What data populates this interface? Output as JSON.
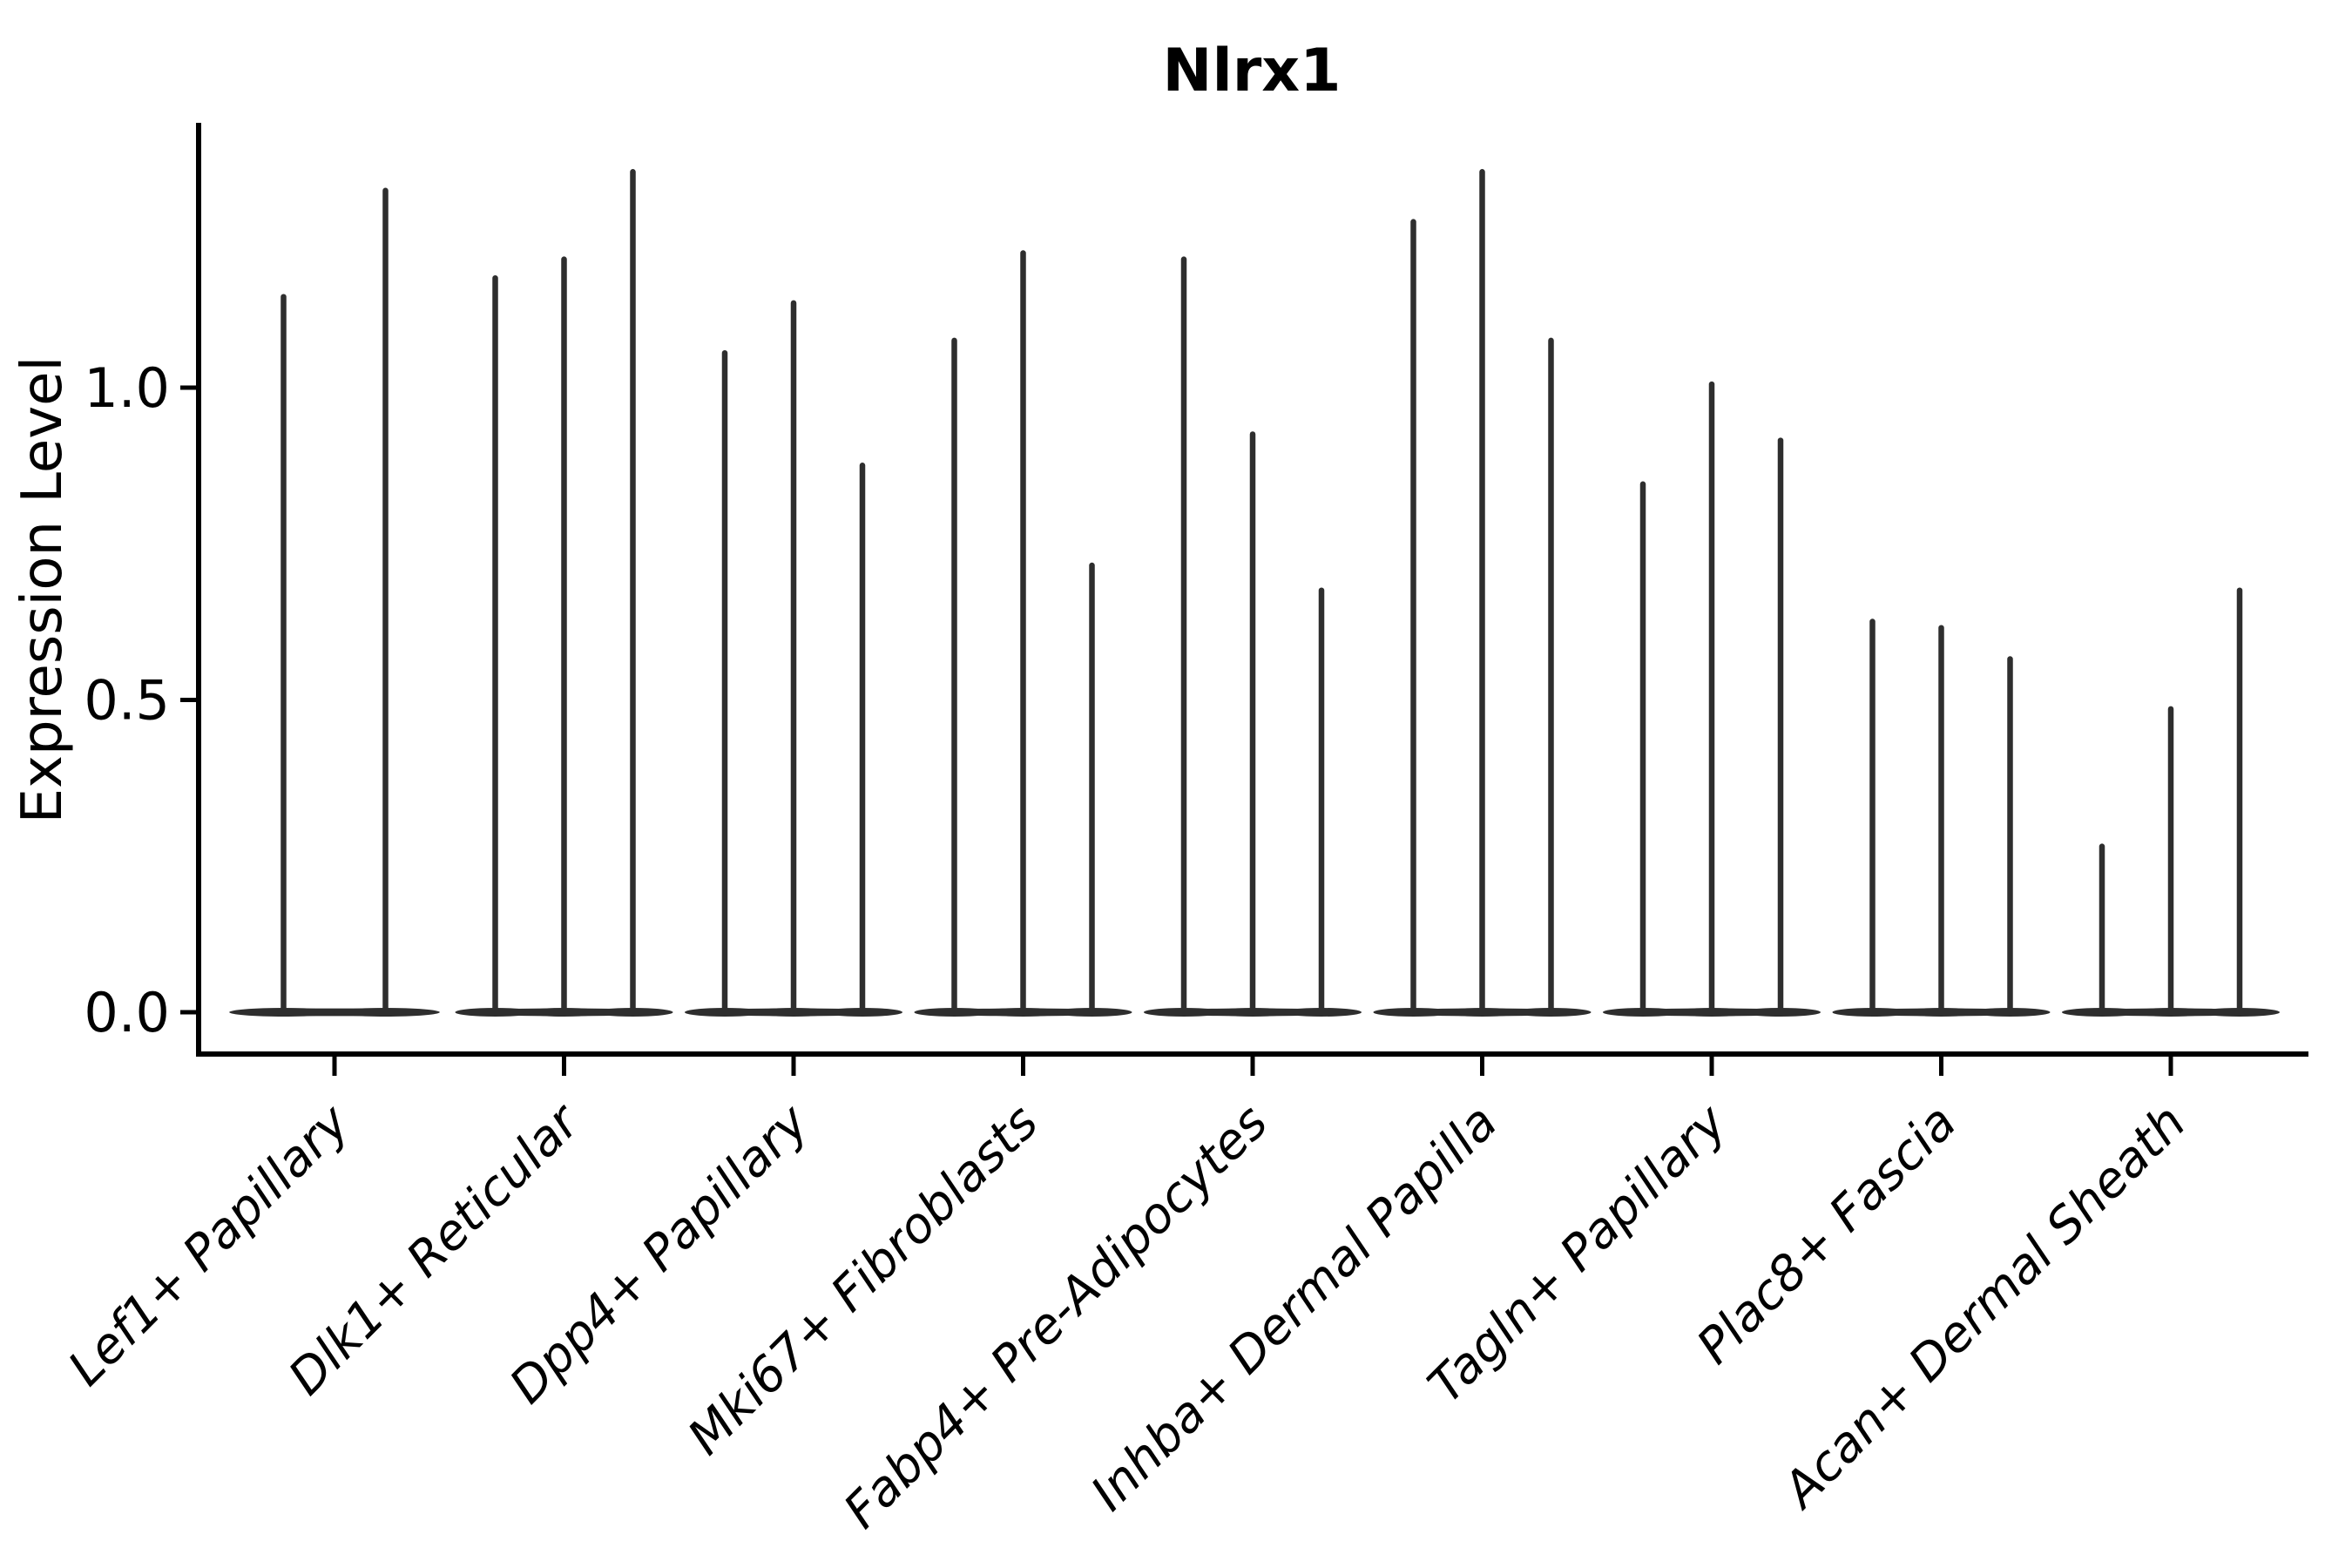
{
  "chart_data": {
    "type": "violin",
    "title": "Nlrx1",
    "ylabel": "Expression Level",
    "xlabel": "",
    "ytick_labels": [
      "0.0",
      "0.5",
      "1.0"
    ],
    "ytick_values": [
      0.0,
      0.5,
      1.0
    ],
    "ylim": [
      -0.07,
      1.42
    ],
    "grid": false,
    "legend": null,
    "violin_color": "#2e2e2e",
    "axis_color": "#000000",
    "background_color": "#ffffff",
    "categories": [
      "Lef1+ Papillary",
      "Dlk1+ Reticular",
      "Dpp4+ Papillary",
      "Mki67+ Fibroblasts",
      "Fabp4+ Pre-Adipocytes",
      "Inhba+ Dermal Papilla",
      "Tagln+ Papillary",
      "Plac8+ Fascia",
      "Acan+ Dermal Sheath"
    ],
    "groups": [
      {
        "category": "Lef1+ Papillary",
        "max_expression": [
          1.15,
          1.32
        ]
      },
      {
        "category": "Dlk1+ Reticular",
        "max_expression": [
          1.18,
          1.21,
          1.35
        ]
      },
      {
        "category": "Dpp4+ Papillary",
        "max_expression": [
          1.06,
          1.14,
          0.88
        ]
      },
      {
        "category": "Mki67+ Fibroblasts",
        "max_expression": [
          1.08,
          1.22,
          0.72
        ]
      },
      {
        "category": "Fabp4+ Pre-Adipocytes",
        "max_expression": [
          1.21,
          0.93,
          0.68
        ]
      },
      {
        "category": "Inhba+ Dermal Papilla",
        "max_expression": [
          1.27,
          1.35,
          1.08
        ]
      },
      {
        "category": "Tagln+ Papillary",
        "max_expression": [
          0.85,
          1.01,
          0.92
        ]
      },
      {
        "category": "Plac8+ Fascia",
        "max_expression": [
          0.63,
          0.62,
          0.57
        ]
      },
      {
        "category": "Acan+ Dermal Sheath",
        "max_expression": [
          0.27,
          0.49,
          0.68
        ]
      }
    ],
    "notes": "Violin plot; each cell-type group contains thin violins (mostly-zero expression with long thin tails); flat bulge of density at y=0 spanning each group."
  }
}
